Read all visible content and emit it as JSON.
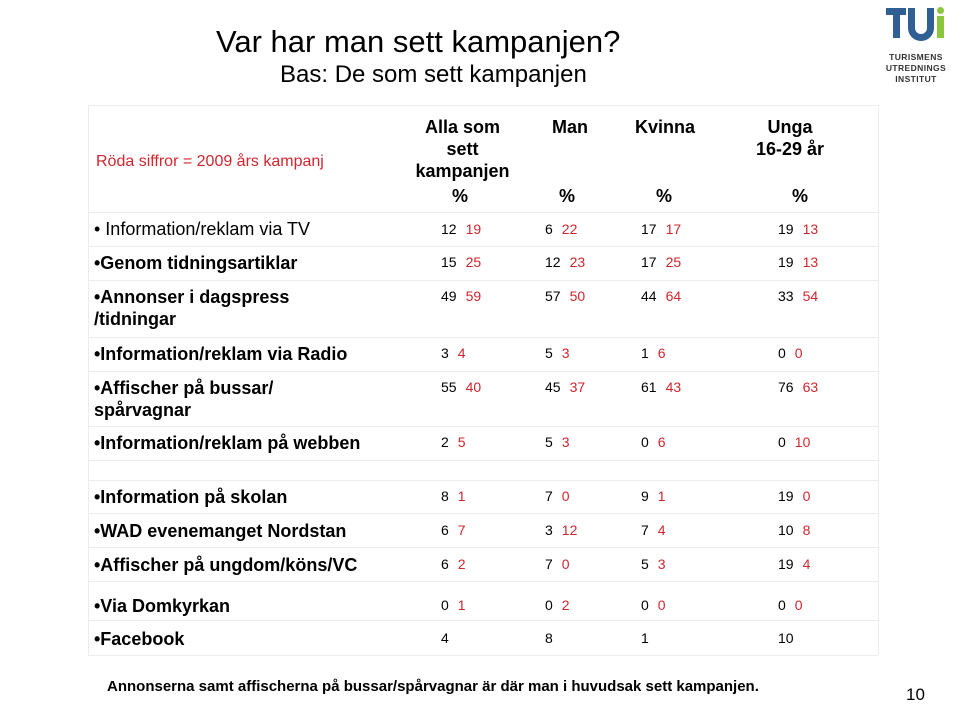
{
  "slide": {
    "title": "Var har man sett kampanjen?",
    "subtitle": "Bas: De som sett kampanjen",
    "legend_note": "Röda siffror = 2009 års kampanj",
    "footer": "Annonserna samt affischerna på bussar/spårvagnar är där man i huvudsak sett kampanjen.",
    "page_number": "10"
  },
  "logo": {
    "mark": "TUI",
    "line1": "TURISMENS",
    "line2": "UTREDNINGS",
    "line3": "INSTITUT",
    "colors": {
      "blue": "#2f5f93",
      "green": "#8cc63f"
    }
  },
  "columns": [
    {
      "line1": "Alla som",
      "line2": "sett",
      "line3": "kampanjen",
      "pct": "%"
    },
    {
      "line1": "Man",
      "line2": "",
      "line3": "",
      "pct": "%"
    },
    {
      "line1": "Kvinna",
      "line2": "",
      "line3": "",
      "pct": "%"
    },
    {
      "line1": "Unga",
      "line2": "16-29 år",
      "line3": "",
      "pct": "%"
    }
  ],
  "rows": [
    {
      "label1": "• Information/reklam via TV",
      "label2": "",
      "cells": [
        [
          "12",
          "19"
        ],
        [
          "6",
          "22"
        ],
        [
          "17",
          "17"
        ],
        [
          "19",
          "13"
        ]
      ]
    },
    {
      "label1": "•Genom tidningsartiklar",
      "label2": "",
      "cells": [
        [
          "15",
          "25"
        ],
        [
          "12",
          "23"
        ],
        [
          "17",
          "25"
        ],
        [
          "19",
          "13"
        ]
      ]
    },
    {
      "label1": "•Annonser i dagspress",
      "label2": "/tidningar",
      "cells": [
        [
          "49",
          "59"
        ],
        [
          "57",
          "50"
        ],
        [
          "44",
          "64"
        ],
        [
          "33",
          "54"
        ]
      ]
    },
    {
      "label1": "•Information/reklam via Radio",
      "label2": "",
      "cells": [
        [
          "3",
          "4"
        ],
        [
          "5",
          "3"
        ],
        [
          "1",
          "6"
        ],
        [
          "0",
          "0"
        ]
      ]
    },
    {
      "label1": "•Affischer på bussar/",
      "label2": "spårvagnar",
      "cells": [
        [
          "55",
          "40"
        ],
        [
          "45",
          "37"
        ],
        [
          "61",
          "43"
        ],
        [
          "76",
          "63"
        ]
      ]
    },
    {
      "label1": "•Information/reklam på webben",
      "label2": "",
      "cells": [
        [
          "2",
          "5"
        ],
        [
          "5",
          "3"
        ],
        [
          "0",
          "6"
        ],
        [
          "0",
          "10"
        ]
      ]
    },
    {
      "label1": "•Information på skolan",
      "label2": "",
      "cells": [
        [
          "8",
          "1"
        ],
        [
          "7",
          "0"
        ],
        [
          "9",
          "1"
        ],
        [
          "19",
          "0"
        ]
      ]
    },
    {
      "label1": "•WAD evenemanget Nordstan",
      "label2": "",
      "cells": [
        [
          "6",
          "7"
        ],
        [
          "3",
          "12"
        ],
        [
          "7",
          "4"
        ],
        [
          "10",
          "8"
        ]
      ]
    },
    {
      "label1": "•Affischer på ungdom/köns/VC",
      "label2": "",
      "cells": [
        [
          "6",
          "2"
        ],
        [
          "7",
          "0"
        ],
        [
          "5",
          "3"
        ],
        [
          "19",
          "4"
        ]
      ]
    },
    {
      "label1": "•Via Domkyrkan",
      "label2": "",
      "cells": [
        [
          "0",
          "1"
        ],
        [
          "0",
          "2"
        ],
        [
          "0",
          "0"
        ],
        [
          "0",
          "0"
        ]
      ]
    },
    {
      "label1": "•Facebook",
      "label2": "",
      "cells": [
        [
          "4",
          ""
        ],
        [
          "8",
          ""
        ],
        [
          "1",
          ""
        ],
        [
          "10",
          ""
        ]
      ]
    }
  ]
}
